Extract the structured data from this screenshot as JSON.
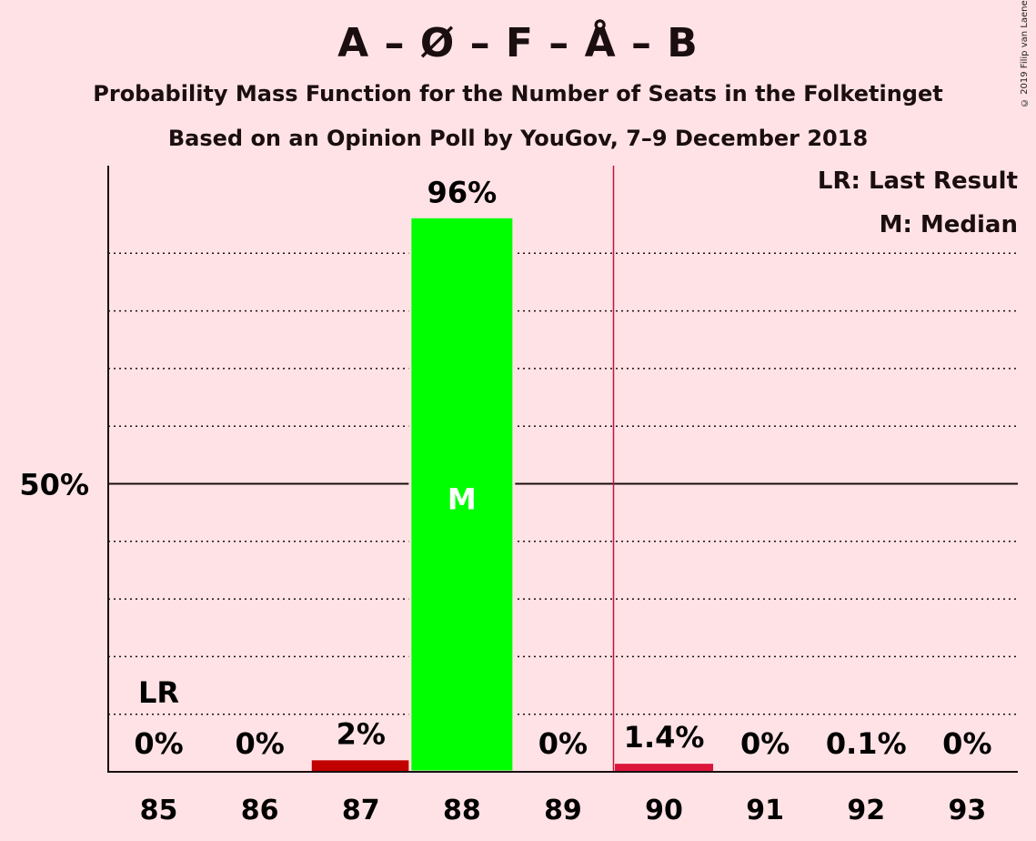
{
  "header": {
    "title": "A – Ø – F – Å – B",
    "subtitle1": "Probability Mass Function for the Number of Seats in the Folketinget",
    "subtitle2": "Based on an Opinion Poll by YouGov, 7–9 December 2018",
    "copyright": "© 2019 Filip van Laenen"
  },
  "legend": {
    "lr": "LR: Last Result",
    "median": "M: Median"
  },
  "chart_data": {
    "type": "bar",
    "categories": [
      "85",
      "86",
      "87",
      "88",
      "89",
      "90",
      "91",
      "92",
      "93"
    ],
    "values": [
      0,
      0,
      2,
      96,
      0,
      1.4,
      0,
      0.1,
      0
    ],
    "labels": [
      "0%",
      "0%",
      "2%",
      "96%",
      "0%",
      "1.4%",
      "0%",
      "0.1%",
      "0%"
    ],
    "colors": [
      "#C10000",
      "#C10000",
      "#C10000",
      "#00FF00",
      "#DC143C",
      "#DC143C",
      "#DC143C",
      "#DC143C",
      "#DC143C"
    ],
    "ylim": [
      0,
      105
    ],
    "ytick_label": "50%",
    "ytick_value": 50,
    "gridlines": [
      10,
      20,
      30,
      40,
      60,
      70,
      80,
      90
    ],
    "last_result": {
      "category": "85",
      "label": "LR"
    },
    "median": {
      "category": "88",
      "label": "M"
    },
    "majority_line_category": "90",
    "majority_line_color": "#C0143C"
  }
}
